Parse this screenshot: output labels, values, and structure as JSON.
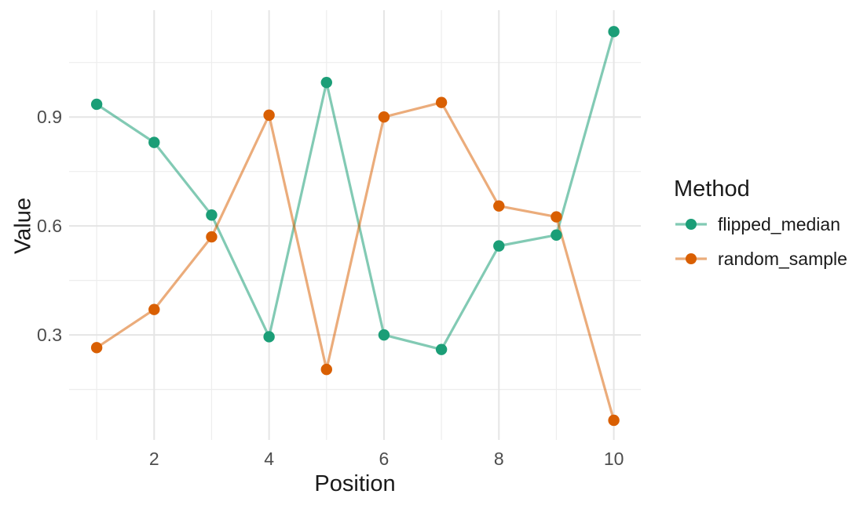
{
  "figure": {
    "background": "#FFFFFF",
    "axis_text_color": "#4D4D4D",
    "title_text_color": "#1A1A1A",
    "grid_major_color": "#E5E5E5",
    "grid_minor_color": "#EDEDED"
  },
  "chart_data": {
    "type": "line",
    "title": "",
    "xlabel": "Position",
    "ylabel": "Value",
    "legend_title": "Method",
    "legend_position": "right",
    "grid": "major and minor gridlines, no axis lines or ticks (ggplot theme_minimal)",
    "x": [
      1,
      2,
      3,
      4,
      5,
      6,
      7,
      8,
      9,
      10
    ],
    "series": [
      {
        "name": "flipped_median",
        "point_color": "#1B9E77",
        "line_color": "rgba(27,158,119,0.55)",
        "values": [
          0.935,
          0.83,
          0.63,
          0.295,
          0.995,
          0.3,
          0.26,
          0.545,
          0.575,
          1.135
        ]
      },
      {
        "name": "random_sample",
        "point_color": "#D95F02",
        "line_color": "rgba(217,95,2,0.52)",
        "values": [
          0.265,
          0.37,
          0.57,
          0.905,
          0.205,
          0.9,
          0.94,
          0.655,
          0.625,
          0.065
        ]
      }
    ],
    "x_ticks": [
      2,
      4,
      6,
      8,
      10
    ],
    "x_minor_ticks": [
      1,
      3,
      5,
      7,
      9
    ],
    "y_ticks": [
      "0.3",
      "0.6",
      "0.9"
    ],
    "y_tick_values": [
      0.3,
      0.6,
      0.9
    ],
    "y_minor_ticks": [
      0.15,
      0.45,
      0.75,
      1.05
    ],
    "xlim": [
      0.52,
      10.47
    ],
    "ylim": [
      0.011,
      1.194
    ]
  }
}
